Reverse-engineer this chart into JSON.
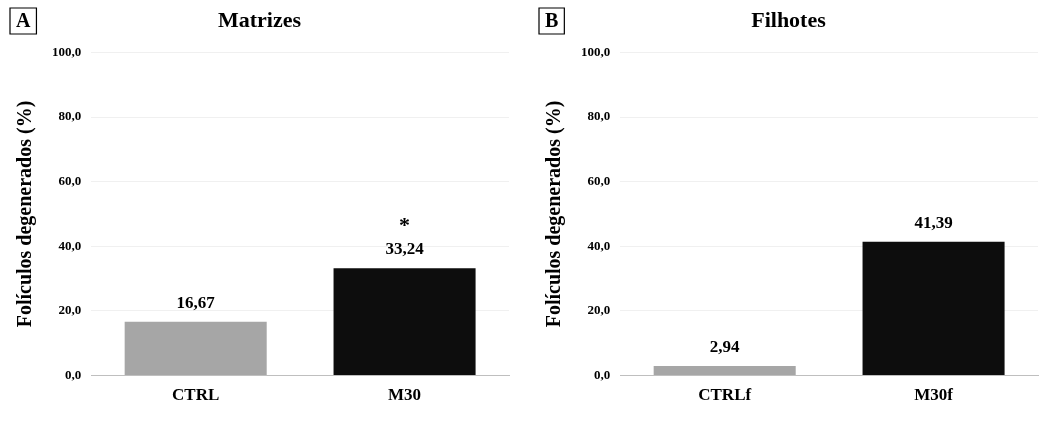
{
  "chart_data": [
    {
      "type": "bar",
      "title": "Matrizes",
      "ylabel": "Folículos degenerados (%)",
      "categories": [
        "CTRL",
        "M30"
      ],
      "values": [
        16.67,
        33.24
      ],
      "colors": [
        "#a6a6a6",
        "#0d0d0d"
      ],
      "value_labels": [
        "16,67",
        "33,24"
      ],
      "ylim": [
        0,
        100
      ],
      "yticks": [
        {
          "value": 0,
          "label": "0,0"
        },
        {
          "value": 20,
          "label": "20,0"
        },
        {
          "value": 40,
          "label": "40,0"
        },
        {
          "value": 60,
          "label": "60,0"
        },
        {
          "value": 80,
          "label": "80,0"
        },
        {
          "value": 100,
          "label": "100,0"
        }
      ],
      "grid": "y",
      "annotations": [
        "A",
        "*"
      ]
    },
    {
      "type": "bar",
      "title": "Filhotes",
      "ylabel": "Folículos degenerados (%)",
      "categories": [
        "CTRLf",
        "M30f"
      ],
      "values": [
        2.94,
        41.39
      ],
      "colors": [
        "#a6a6a6",
        "#0d0d0d"
      ],
      "value_labels": [
        "2,94",
        "41,39"
      ],
      "ylim": [
        0,
        100
      ],
      "yticks": [
        {
          "value": 0,
          "label": "0,0"
        },
        {
          "value": 20,
          "label": "20,0"
        },
        {
          "value": 40,
          "label": "40,0"
        },
        {
          "value": 60,
          "label": "60,0"
        },
        {
          "value": 80,
          "label": "80,0"
        },
        {
          "value": 100,
          "label": "100,0"
        }
      ],
      "grid": "y",
      "annotations": [
        "B"
      ]
    }
  ]
}
